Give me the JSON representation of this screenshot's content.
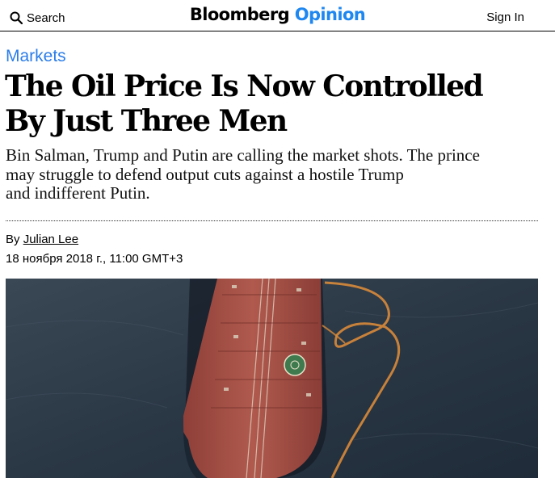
{
  "header": {
    "search_label": "Search",
    "logo_brand": "Bloomberg",
    "logo_section": "Opinion",
    "signin_label": "Sign In"
  },
  "article": {
    "section": "Markets",
    "headline_line1": "The Oil Price Is Now Controlled",
    "headline_line2": "By Just Three Men",
    "dek_line1": "Bin Salman, Trump and Putin are calling the market shots. The prince",
    "dek_line2": "may struggle to defend output cuts against a hostile Trump",
    "dek_line3": "and indifferent Putin.",
    "byline_prefix": "By",
    "author": "Julian Lee",
    "date": "18 ноября 2018 г., 11:00 GMT+3"
  },
  "icons": {
    "search": "search-icon"
  },
  "colors": {
    "accent": "#1e87f0",
    "section_link": "#2b7de9",
    "sea": "#2c3a4a",
    "hull_deck": "#a85248",
    "boom": "#d8893a"
  }
}
